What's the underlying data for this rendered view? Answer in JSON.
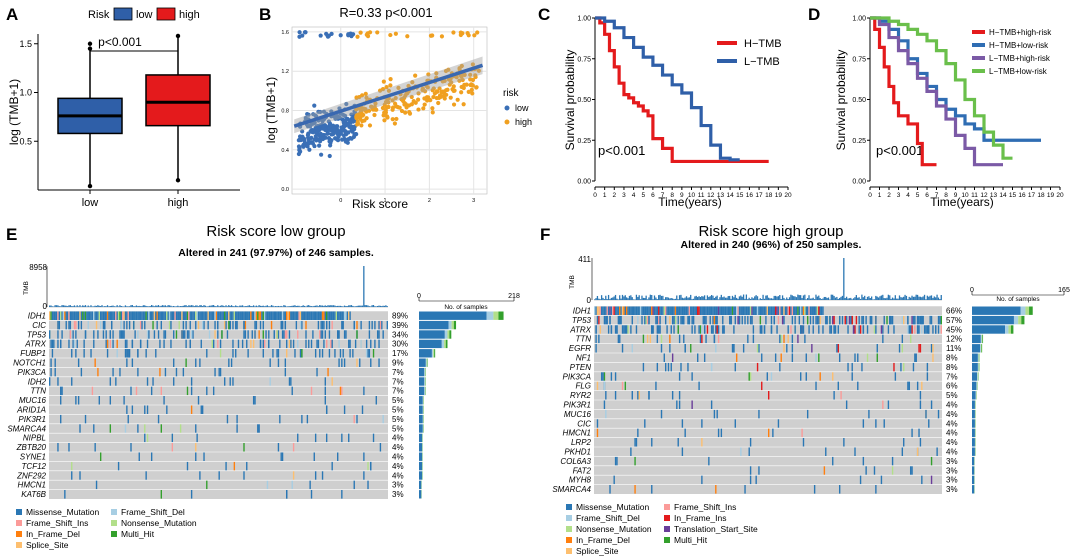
{
  "panel_labels": [
    "A",
    "B",
    "C",
    "D",
    "E",
    "F"
  ],
  "colors": {
    "low": "#2f5fa8",
    "high": "#e41a1c",
    "scatter_low": "#3a6fb6",
    "scatter_high": "#f0a020",
    "fit": "#3a68b0",
    "h_tmb": "#e41a1c",
    "l_tmb": "#2f5fa8",
    "hh": "#e41a1c",
    "hl": "#2f6db3",
    "lh": "#7b5aa6",
    "ll": "#6abf4b",
    "grid_bg": "#d9d9d9",
    "panel_bg": "#ebebeb",
    "missense": "#2a77b4",
    "frame_shift_del": "#a7cee3",
    "frame_shift_ins": "#fb9b99",
    "nonsense": "#b2df8a",
    "in_frame_del": "#ff7f0e",
    "multi_hit": "#33a02c",
    "splice_site": "#fdbf6f",
    "in_frame_ins": "#e31a1c",
    "translation_start": "#6a3d9a"
  },
  "chart_data": [
    {
      "id": "A",
      "type": "box",
      "legend_title": "Risk",
      "legend": [
        "low",
        "high"
      ],
      "categories": [
        "low",
        "high"
      ],
      "ylabel": "log (TMB+1)",
      "yticks": [
        0.5,
        1.0,
        1.5
      ],
      "ylim": [
        0.0,
        1.6
      ],
      "pvalue": "p<0.001",
      "boxes": [
        {
          "name": "low",
          "q1": 0.58,
          "median": 0.76,
          "q3": 0.94,
          "whisker_low": 0.04,
          "whisker_high": 1.45,
          "outliers": [
            1.5
          ]
        },
        {
          "name": "high",
          "q1": 0.66,
          "median": 0.9,
          "q3": 1.18,
          "whisker_low": 0.1,
          "whisker_high": 1.58,
          "outliers": []
        }
      ]
    },
    {
      "id": "B",
      "type": "scatter",
      "title": "R=0.33 p<0.001",
      "xlabel": "Risk score",
      "ylabel": "log (TMB+1)",
      "xticks": [
        0,
        1,
        2,
        3
      ],
      "yticks": [
        0.0,
        0.4,
        0.8,
        1.2,
        1.6
      ],
      "xlim": [
        -1.1,
        3.3
      ],
      "ylim": [
        -0.05,
        1.65
      ],
      "legend_title": "risk",
      "legend": [
        "low",
        "high"
      ],
      "threshold": 0.35,
      "fit": {
        "x0": -1.05,
        "y0": 0.64,
        "x1": 3.2,
        "y1": 1.26
      },
      "n_low": 246,
      "n_high": 250
    },
    {
      "id": "C",
      "type": "line",
      "xlabel": "Time(years)",
      "ylabel": "Survival probability",
      "xticks": [
        0,
        1,
        2,
        3,
        4,
        5,
        6,
        7,
        8,
        9,
        10,
        11,
        12,
        13,
        14,
        15,
        16,
        17,
        18,
        19,
        20
      ],
      "yticks": [
        "0.00",
        "0.25",
        "0.50",
        "0.75",
        "1.00"
      ],
      "pvalue": "p<0.001",
      "series": [
        {
          "name": "H−TMB",
          "x": [
            0,
            0.5,
            1,
            1.5,
            2,
            2.5,
            3,
            3.5,
            4,
            4.5,
            5,
            5.5,
            6,
            7,
            8,
            9,
            10,
            11,
            12,
            13,
            14,
            15,
            16,
            17,
            18
          ],
          "y": [
            1.0,
            0.97,
            0.9,
            0.8,
            0.7,
            0.6,
            0.53,
            0.51,
            0.48,
            0.46,
            0.43,
            0.4,
            0.26,
            0.2,
            0.12,
            0.12,
            0.12,
            0.12,
            0.12,
            0.12,
            0.12,
            0.12,
            0.12,
            0.12,
            0.12
          ]
        },
        {
          "name": "L−TMB",
          "x": [
            0,
            1,
            2,
            3,
            4,
            5,
            6,
            7,
            8,
            9,
            10,
            11,
            12,
            13,
            14,
            15
          ],
          "y": [
            1.0,
            0.98,
            0.94,
            0.88,
            0.82,
            0.76,
            0.71,
            0.65,
            0.59,
            0.54,
            0.45,
            0.34,
            0.22,
            0.14,
            0.13,
            0.13
          ]
        }
      ]
    },
    {
      "id": "D",
      "type": "line",
      "xlabel": "Time(years)",
      "ylabel": "Survival probability",
      "xticks": [
        0,
        1,
        2,
        3,
        4,
        5,
        6,
        7,
        8,
        9,
        10,
        11,
        12,
        13,
        14,
        15,
        16,
        17,
        18,
        19,
        20
      ],
      "yticks": [
        "0.00",
        "0.25",
        "0.50",
        "0.75",
        "1.00"
      ],
      "pvalue": "p<0.001",
      "series": [
        {
          "name": "H−TMB+high-risk",
          "x": [
            0,
            0.5,
            1,
            1.5,
            2,
            2.5,
            3,
            4,
            5,
            5.5,
            6,
            7
          ],
          "y": [
            1.0,
            0.93,
            0.82,
            0.7,
            0.58,
            0.48,
            0.4,
            0.35,
            0.23,
            0.1,
            0.1,
            0.1
          ]
        },
        {
          "name": "H−TMB+low-risk",
          "x": [
            0,
            1,
            2,
            3,
            4,
            5,
            6,
            7,
            8,
            9,
            10,
            11,
            12,
            13,
            14,
            15,
            16,
            17,
            18
          ],
          "y": [
            1.0,
            0.98,
            0.93,
            0.86,
            0.75,
            0.66,
            0.58,
            0.5,
            0.44,
            0.4,
            0.35,
            0.32,
            0.25,
            0.25,
            0.25,
            0.25,
            0.25,
            0.25,
            0.25
          ]
        },
        {
          "name": "L−TMB+high-risk",
          "x": [
            0,
            1,
            2,
            3,
            4,
            5,
            6,
            7,
            8,
            9,
            10,
            11,
            12,
            13,
            14
          ],
          "y": [
            1.0,
            0.96,
            0.88,
            0.8,
            0.72,
            0.63,
            0.55,
            0.46,
            0.38,
            0.28,
            0.2,
            0.1,
            0.1,
            0.1,
            0.1
          ]
        },
        {
          "name": "L−TMB+low-risk",
          "x": [
            0,
            1,
            2,
            3,
            4,
            5,
            6,
            7,
            8,
            9,
            10,
            11,
            12,
            13,
            14,
            15
          ],
          "y": [
            1.0,
            1.0,
            0.98,
            0.96,
            0.93,
            0.9,
            0.86,
            0.8,
            0.72,
            0.62,
            0.5,
            0.4,
            0.3,
            0.22,
            0.14,
            0.14
          ]
        }
      ]
    },
    {
      "id": "E",
      "type": "oncoplot",
      "title": "Risk score low group",
      "subtitle": "Altered in 241 (97.97%) of 246 samples.",
      "tmb_label": "TMB",
      "tmb_max": "8958",
      "tmb_min": "0",
      "bar_axis": [
        "0",
        "218"
      ],
      "bar_axis_label": "No. of samples",
      "genes": [
        "IDH1",
        "CIC",
        "TP53",
        "ATRX",
        "FUBP1",
        "NOTCH1",
        "PIK3CA",
        "IDH2",
        "TTN",
        "MUC16",
        "ARID1A",
        "PIK3R1",
        "SMARCA4",
        "NIPBL",
        "ZBTB20",
        "SYNE1",
        "TCF12",
        "ZNF292",
        "HMCN1",
        "KAT6B"
      ],
      "percents": [
        "89%",
        "39%",
        "34%",
        "30%",
        "17%",
        "9%",
        "7%",
        "7%",
        "7%",
        "5%",
        "5%",
        "5%",
        "5%",
        "4%",
        "4%",
        "4%",
        "4%",
        "4%",
        "3%",
        "3%"
      ],
      "freq": [
        0.89,
        0.39,
        0.34,
        0.3,
        0.17,
        0.09,
        0.07,
        0.07,
        0.07,
        0.05,
        0.05,
        0.05,
        0.05,
        0.04,
        0.04,
        0.04,
        0.04,
        0.04,
        0.03,
        0.03
      ],
      "legend": [
        "Missense_Mutation",
        "Frame_Shift_Del",
        "Frame_Shift_Ins",
        "Nonsense_Mutation",
        "In_Frame_Del",
        "Multi_Hit",
        "Splice_Site"
      ]
    },
    {
      "id": "F",
      "type": "oncoplot",
      "title": "Risk score high group",
      "subtitle": "Altered in 240 (96%) of 250 samples.",
      "tmb_label": "TMB",
      "tmb_max": "411",
      "tmb_min": "0",
      "bar_axis": [
        "0",
        "165"
      ],
      "bar_axis_label": "No. of samples",
      "genes": [
        "IDH1",
        "TP53",
        "ATRX",
        "TTN",
        "EGFR",
        "NF1",
        "PTEN",
        "PIK3CA",
        "FLG",
        "RYR2",
        "PIK3R1",
        "MUC16",
        "CIC",
        "HMCN1",
        "LRP2",
        "PKHD1",
        "COL6A3",
        "FAT2",
        "MYH8",
        "SMARCA4"
      ],
      "percents": [
        "66%",
        "57%",
        "45%",
        "12%",
        "11%",
        "8%",
        "8%",
        "7%",
        "6%",
        "5%",
        "4%",
        "4%",
        "4%",
        "4%",
        "4%",
        "4%",
        "3%",
        "3%",
        "3%",
        "3%"
      ],
      "freq": [
        0.66,
        0.57,
        0.45,
        0.12,
        0.11,
        0.08,
        0.08,
        0.07,
        0.06,
        0.05,
        0.04,
        0.04,
        0.04,
        0.04,
        0.04,
        0.04,
        0.03,
        0.03,
        0.03,
        0.03
      ],
      "legend": [
        "Missense_Mutation",
        "Frame_Shift_Ins",
        "Frame_Shift_Del",
        "In_Frame_Ins",
        "Nonsense_Mutation",
        "Translation_Start_Site",
        "In_Frame_Del",
        "Multi_Hit",
        "Splice_Site"
      ]
    }
  ]
}
